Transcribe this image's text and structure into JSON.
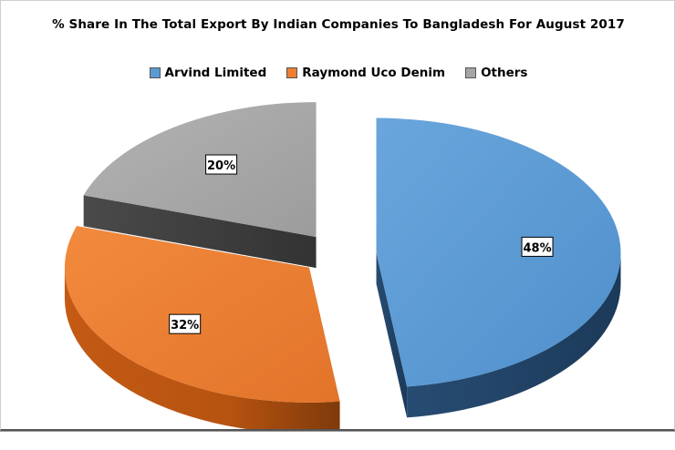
{
  "chart_data": {
    "type": "pie",
    "title": "% Share In The Total Export By Indian Companies To Bangladesh For August 2017",
    "legend_position": "top",
    "style": "3d-exploded",
    "series": [
      {
        "name": "Arvind Limited",
        "value": 48,
        "label": "48%",
        "color": "#5b9bd5"
      },
      {
        "name": "Raymond Uco Denim",
        "value": 32,
        "label": "32%",
        "color": "#ed7d31"
      },
      {
        "name": "Others",
        "value": 20,
        "label": "20%",
        "color": "#a5a5a5"
      }
    ]
  }
}
